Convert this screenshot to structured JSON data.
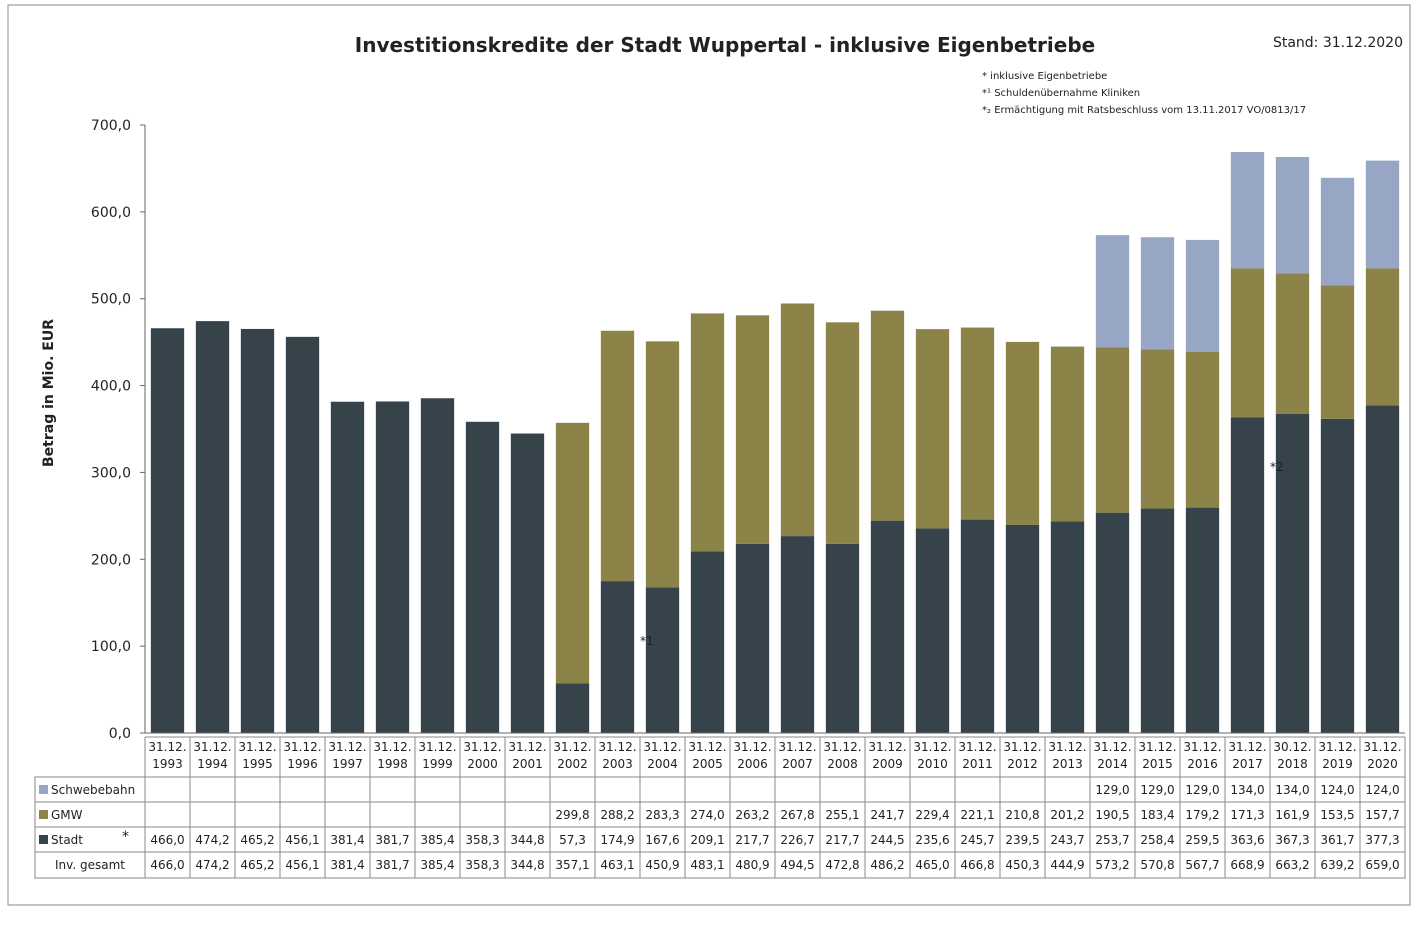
{
  "chart_data": {
    "type": "stacked_bar",
    "title": "Investitionskredite der Stadt Wuppertal - inklusive Eigenbetriebe",
    "subtitle": "Stand: 31.12.2020",
    "notes": [
      "* inklusive Eigenbetriebe",
      "*¹ Schuldenübernahme Kliniken",
      "*₂ Ermächtigung mit Ratsbeschluss vom 13.11.2017 VO/0813/17"
    ],
    "ylabel": "Betrag in Mio. EUR",
    "annotations": [
      {
        "text": "*1",
        "category": 10
      },
      {
        "text": "*2",
        "category": 24
      }
    ],
    "legend_note": "*",
    "categories": [
      "31.12. 1993",
      "31.12. 1994",
      "31.12. 1995",
      "31.12. 1996",
      "31.12. 1997",
      "31.12. 1998",
      "31.12. 1999",
      "31.12. 2000",
      "31.12. 2001",
      "31.12. 2002",
      "31.12. 2003",
      "31.12. 2004",
      "31.12. 2005",
      "31.12. 2006",
      "31.12. 2007",
      "31.12. 2008",
      "31.12. 2009",
      "31.12. 2010",
      "31.12. 2011",
      "31.12. 2012",
      "31.12. 2013",
      "31.12. 2014",
      "31.12. 2015",
      "31.12. 2016",
      "31.12. 2017",
      "30.12. 2018",
      "31.12. 2019",
      "31.12. 2020"
    ],
    "series": [
      {
        "name": "Stadt",
        "color": "#37434a",
        "values": [
          466.0,
          474.2,
          465.2,
          456.1,
          381.4,
          381.7,
          385.4,
          358.3,
          344.8,
          57.3,
          174.9,
          167.6,
          209.1,
          217.7,
          226.7,
          217.7,
          244.5,
          235.6,
          245.7,
          239.5,
          243.7,
          253.7,
          258.4,
          259.5,
          363.6,
          367.3,
          361.7,
          377.3
        ],
        "value_labels": [
          "466,0",
          "474,2",
          "465,2",
          "456,1",
          "381,4",
          "381,7",
          "385,4",
          "358,3",
          "344,8",
          "57,3",
          "174,9",
          "167,6",
          "209,1",
          "217,7",
          "226,7",
          "217,7",
          "244,5",
          "235,6",
          "245,7",
          "239,5",
          "243,7",
          "253,7",
          "258,4",
          "259,5",
          "363,6",
          "367,3",
          "361,7",
          "377,3"
        ]
      },
      {
        "name": "GMW",
        "color": "#8b8347",
        "values": [
          null,
          null,
          null,
          null,
          null,
          null,
          null,
          null,
          null,
          299.8,
          288.2,
          283.3,
          274.0,
          263.2,
          267.8,
          255.1,
          241.7,
          229.4,
          221.1,
          210.8,
          201.2,
          190.5,
          183.4,
          179.2,
          171.3,
          161.9,
          153.5,
          157.7
        ],
        "value_labels": [
          null,
          null,
          null,
          null,
          null,
          null,
          null,
          null,
          null,
          "299,8",
          "288,2",
          "283,3",
          "274,0",
          "263,2",
          "267,8",
          "255,1",
          "241,7",
          "229,4",
          "221,1",
          "210,8",
          "201,2",
          "190,5",
          "183,4",
          "179,2",
          "171,3",
          "161,9",
          "153,5",
          "157,7"
        ]
      },
      {
        "name": "Schwebebahn",
        "color": "#98a6c6",
        "values": [
          null,
          null,
          null,
          null,
          null,
          null,
          null,
          null,
          null,
          null,
          null,
          null,
          null,
          null,
          null,
          null,
          null,
          null,
          null,
          null,
          null,
          129.0,
          129.0,
          129.0,
          134.0,
          134.0,
          124.0,
          124.0
        ],
        "value_labels": [
          null,
          null,
          null,
          null,
          null,
          null,
          null,
          null,
          null,
          null,
          null,
          null,
          null,
          null,
          null,
          null,
          null,
          null,
          null,
          null,
          null,
          "129,0",
          "129,0",
          "129,0",
          "134,0",
          "134,0",
          "124,0",
          "124,0"
        ]
      }
    ],
    "totals": {
      "name": "Inv. gesamt",
      "value_labels": [
        "466,0",
        "474,2",
        "465,2",
        "456,1",
        "381,4",
        "381,7",
        "385,4",
        "358,3",
        "344,8",
        "357,1",
        "463,1",
        "450,9",
        "483,1",
        "480,9",
        "494,5",
        "472,8",
        "486,2",
        "465,0",
        "466,8",
        "450,3",
        "444,9",
        "573,2",
        "570,8",
        "567,7",
        "668,9",
        "663,2",
        "639,2",
        "659,0"
      ]
    },
    "ylim": [
      0,
      700
    ],
    "yticks": [
      {
        "value": 0,
        "label": "0,0"
      },
      {
        "value": 100,
        "label": "100,0"
      },
      {
        "value": 200,
        "label": "200,0"
      },
      {
        "value": 300,
        "label": "300,0"
      },
      {
        "value": 400,
        "label": "400,0"
      },
      {
        "value": 500,
        "label": "500,0"
      },
      {
        "value": 600,
        "label": "600,0"
      },
      {
        "value": 700,
        "label": "700,0"
      }
    ]
  }
}
